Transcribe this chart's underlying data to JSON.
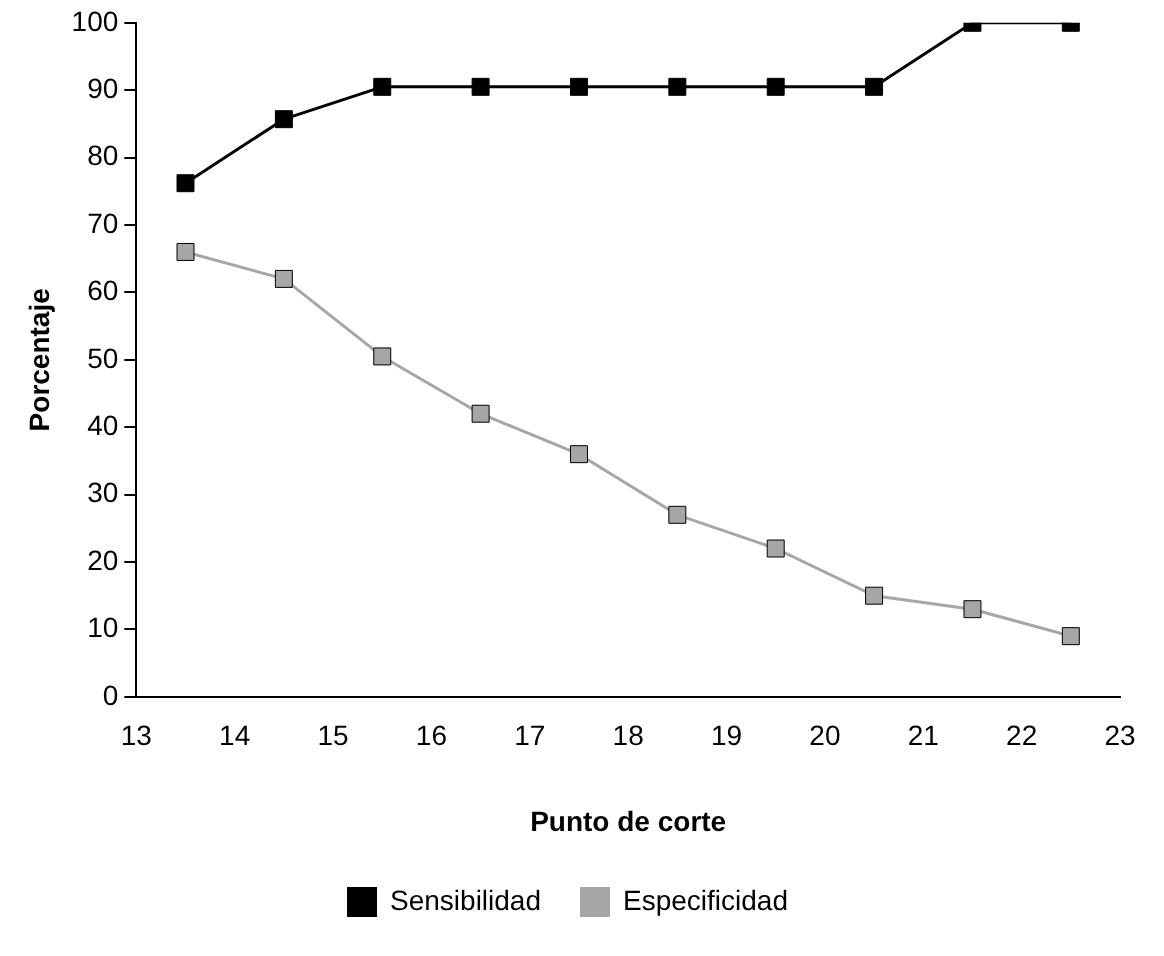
{
  "chart_data": {
    "type": "line",
    "xlabel": "Punto de corte",
    "ylabel": "Porcentaje",
    "x": [
      13.5,
      14.5,
      15.5,
      16.5,
      17.5,
      18.5,
      19.5,
      20.5,
      21.5,
      22.5
    ],
    "series": [
      {
        "name": "Sensibilidad",
        "color": "#000000",
        "values": [
          76.2,
          85.7,
          90.5,
          90.5,
          90.5,
          90.5,
          90.5,
          90.5,
          100,
          100
        ]
      },
      {
        "name": "Especificidad",
        "color": "#a6a6a6",
        "values": [
          66,
          62,
          50.5,
          42,
          36,
          27,
          22,
          15,
          13,
          9
        ]
      }
    ],
    "xlim": [
      13,
      23
    ],
    "xticks": [
      13,
      14,
      15,
      16,
      17,
      18,
      19,
      20,
      21,
      22,
      23
    ],
    "ylim": [
      0,
      100
    ],
    "yticks": [
      0,
      10,
      20,
      30,
      40,
      50,
      60,
      70,
      80,
      90,
      100
    ],
    "grid": false,
    "legend": "bottom",
    "marker": "square",
    "line_style": "solid"
  }
}
